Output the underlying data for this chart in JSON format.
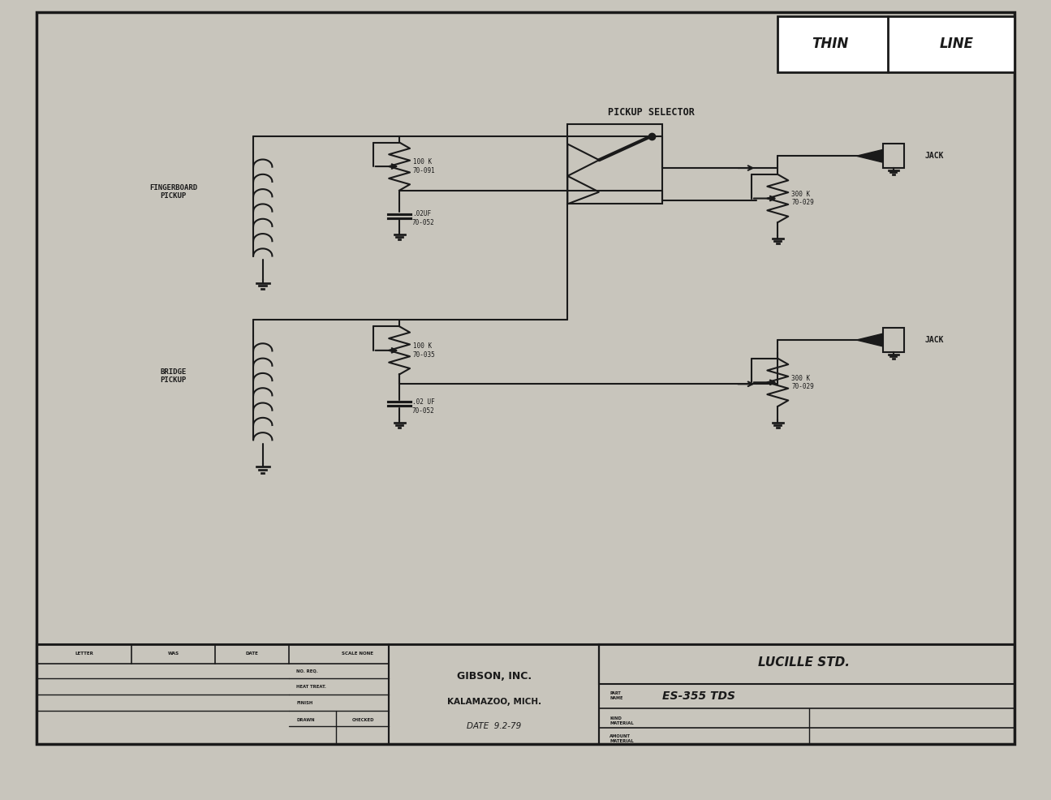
{
  "bg_color": "#c8c5bc",
  "line_color": "#1a1a1a",
  "paper_color": "#dedad0",
  "title_thin": "THIN",
  "title_line": "LINE",
  "pickup_selector_label": "PICKUP SELECTOR",
  "fingerboard_label": "FINGERBOARD\nPICKUP",
  "bridge_label": "BRIDGE\nPICKUP",
  "jack_label": "JACK",
  "r1_label": "100 K\n70-091",
  "c1_label": ".02UF\n70-052",
  "r2_label": "300 K\n70-029",
  "r3_label": "100 K\n70-035",
  "c2_label": ".02 UF\n70-052",
  "r4_label": "300 K\n70-029",
  "date_text": "DATE  9.2-79",
  "lucille_text": "LUCILLE STD.",
  "part_name": "ES-355 TDS",
  "scale_text": "SCALE NONE",
  "letter_label": "LETTER",
  "was_label": "WAS",
  "date_label": "DATE",
  "no_req_label": "NO. REQ.",
  "heat_treat_label": "HEAT TREAT.",
  "finish_label": "FINISH",
  "drawn_label": "DRAWN",
  "checked_label": "CHECKED",
  "kind_label": "KIND",
  "material_label": "MATERIAL",
  "amount_label": "AMOUNT",
  "part_name_label": "PART\nNAME"
}
